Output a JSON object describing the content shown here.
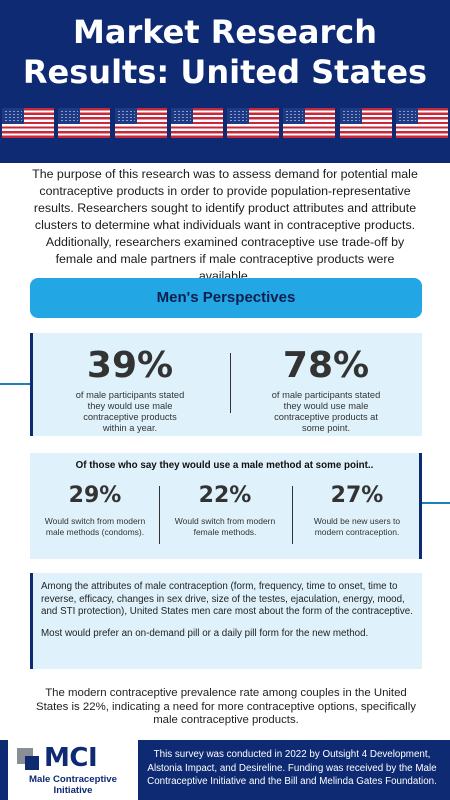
{
  "header": {
    "title_line1": "Market Research",
    "title_line2": "Results: United States"
  },
  "intro": "The purpose of this research was to assess demand for potential male contraceptive products in order to provide population-representative results. Researchers sought to identify product attributes and attribute clusters to determine what individuals want in contraceptive products. Additionally, researchers examined contraceptive use trade-off by female and male partners if male contraceptive products were available.",
  "banner": "Men's Perspectives",
  "stats_primary": [
    {
      "value": "39%",
      "text": "of male participants stated they would use male contraceptive products within a year."
    },
    {
      "value": "78%",
      "text": "of male participants stated they would use male contraceptive products at some point."
    }
  ],
  "stats_secondary": {
    "heading": "Of those who say they would use a male method at some point..",
    "items": [
      {
        "value": "29%",
        "text": "Would switch from modern male methods (condoms)."
      },
      {
        "value": "22%",
        "text": "Would switch from modern female methods."
      },
      {
        "value": "27%",
        "text": "Would be new users to modern contraception."
      }
    ]
  },
  "attributes": {
    "paragraph1": "Among the attributes of male contraception (form, frequency, time to onset, time to reverse, efficacy, changes in sex drive, size of the testes, ejaculation, energy, mood, and STI protection), United States men care most about the form of the contraceptive.",
    "paragraph2": "Most would prefer an on-demand pill or a daily pill form for the new method."
  },
  "prevalence": "The modern contraceptive prevalence rate among couples in the United States is 22%, indicating a need for more contraceptive options, specifically male contraceptive products.",
  "footer": {
    "logo_mark": "MCI",
    "logo_name": "Male Contraceptive Initiative",
    "text": "This survey was conducted in 2022 by Outsight 4 Development, Alstonia Impact, and Desireline. Funding was received by the Male Contraceptive Initiative and the Bill and Melinda Gates Foundation."
  },
  "colors": {
    "navy": "#0e2a73",
    "banner_blue": "#22a7e4",
    "panel_bg": "#dff2fb",
    "flag_red": "#c9283b",
    "flag_blue": "#1f3a85"
  }
}
